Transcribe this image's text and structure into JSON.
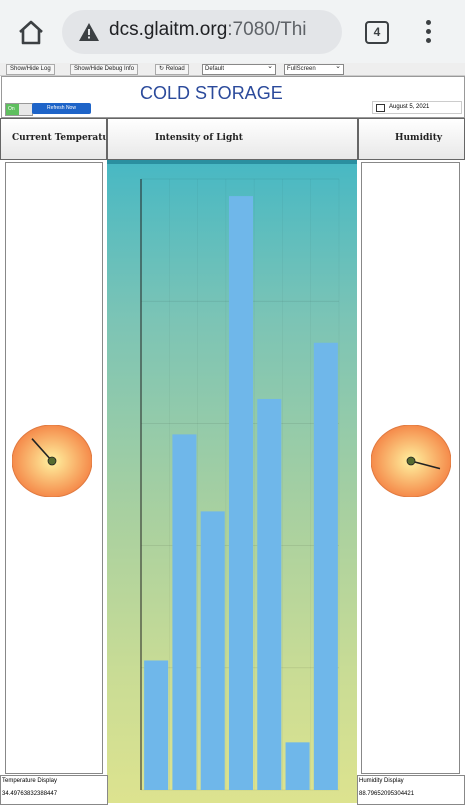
{
  "browser": {
    "url_host": "dcs.glaitm.org",
    "url_rest": ":7080/Thi",
    "tab_count": "4"
  },
  "toolbar": {
    "show_log": "Show/Hide Log",
    "show_debug": "Show/Hide Debug Info",
    "reload": "Reload",
    "view_select": "Default",
    "screen_select": "FullScreen"
  },
  "header": {
    "toggle_label": "On",
    "refresh_label": "Refresh Now",
    "title": "COLD STORAGE",
    "date": "August 5, 2021"
  },
  "columns": {
    "temperature": "Current Temperature",
    "light": "Intensity of Light",
    "humidity": "Humidity"
  },
  "gauges": {
    "temperature": {
      "value": 34.49763832388447,
      "min": 0,
      "max": 100
    },
    "humidity": {
      "value": 88.79652095304421,
      "min": 0,
      "max": 100
    }
  },
  "footer": {
    "temp_label": "Temperature Display",
    "temp_value": "34.49763832388447",
    "hum_label": "Humidity Display",
    "hum_value": "88.79652095304421"
  },
  "chart_data": {
    "type": "bar",
    "values": [
      106,
      291,
      228,
      486,
      320,
      39,
      366
    ],
    "ylim": [
      0,
      500
    ],
    "grid": true,
    "colors": {
      "bar": "#6fb7ea",
      "axis": "#222222"
    }
  }
}
